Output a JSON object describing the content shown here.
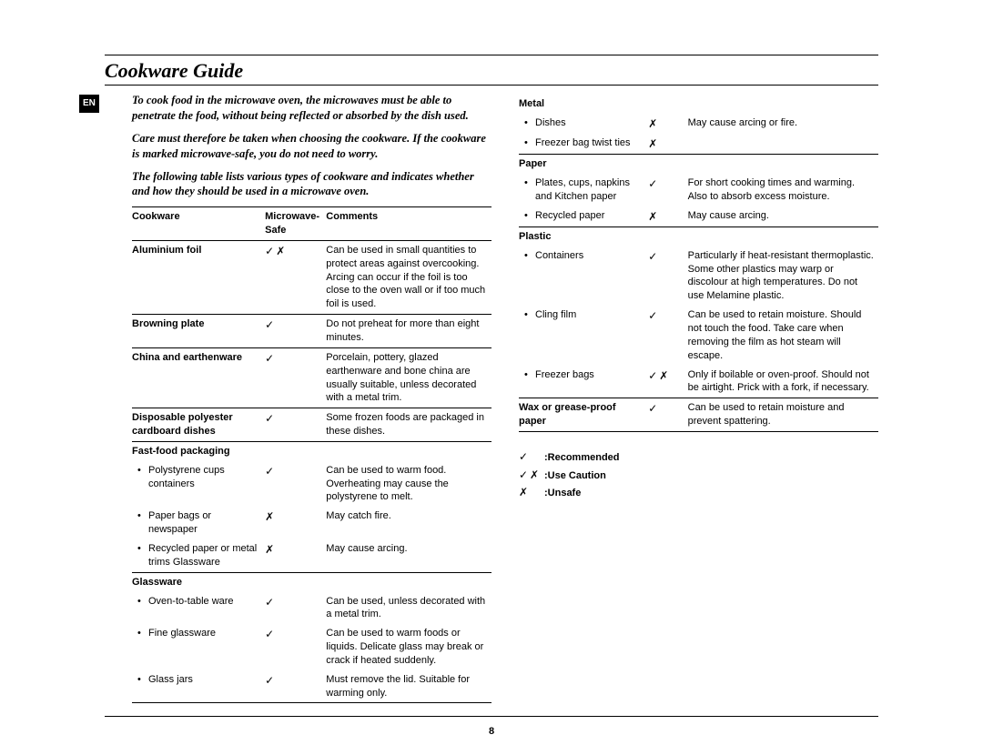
{
  "lang_badge": "EN",
  "title": "Cookware Guide",
  "page_number": "8",
  "intro": [
    "To cook food in the microwave oven, the microwaves must be able to penetrate the food, without being reflected or absorbed by the dish used.",
    "Care must therefore be taken when choosing the cookware.  If the cookware is marked microwave-safe, you do not need to worry.",
    "The following table lists various types of cookware and indicates whether and how they should be used in a microwave oven."
  ],
  "headers": {
    "cookware": "Cookware",
    "safe": "Microwave-Safe",
    "comments": "Comments"
  },
  "symbols": {
    "check": "✓",
    "cross": "✗",
    "caution": "✓✗"
  },
  "legend": {
    "recommended": ":Recommended",
    "caution": ":Use Caution",
    "unsafe": ":Unsafe"
  },
  "left_rows": [
    {
      "name": "Aluminium foil",
      "bold": true,
      "safe": "✓✗",
      "comment": "Can be used in small quantities to protect areas against overcooking. Arcing can occur if the foil is too close to the oven wall or if too much foil is used."
    },
    {
      "name": "Browning plate",
      "bold": true,
      "safe": "✓",
      "comment": "Do not preheat for more than eight minutes."
    },
    {
      "name": "China and earthenware",
      "bold": true,
      "safe": "✓",
      "comment": "Porcelain, pottery, glazed earthenware and bone china are usually suitable, unless decorated with a metal trim."
    },
    {
      "name": "Disposable polyester cardboard dishes",
      "bold": true,
      "safe": "✓",
      "comment": "Some frozen foods are packaged in these dishes."
    },
    {
      "name": "Fast-food packaging",
      "bold": true,
      "header": true
    },
    {
      "name": "Polystyrene cups containers",
      "sub": true,
      "safe": "✓",
      "comment": "Can be used to warm food. Overheating may cause the polystyrene to melt."
    },
    {
      "name": "Paper bags or newspaper",
      "sub": true,
      "safe": "✗",
      "comment": "May catch fire."
    },
    {
      "name": "Recycled paper or metal trims Glassware",
      "sub": true,
      "safe": "✗",
      "comment": "May cause arcing."
    },
    {
      "name": "Glassware",
      "bold": true,
      "header": true
    },
    {
      "name": "Oven-to-table ware",
      "sub": true,
      "safe": "✓",
      "comment": "Can be used, unless decorated with a metal trim."
    },
    {
      "name": "Fine glassware",
      "sub": true,
      "safe": "✓",
      "comment": "Can be used to warm foods or liquids. Delicate glass may break or crack if heated suddenly."
    },
    {
      "name": "Glass jars",
      "sub": true,
      "safe": "✓",
      "comment": "Must remove the lid. Suitable for warming only."
    }
  ],
  "right_rows": [
    {
      "name": "Metal",
      "bold": true,
      "header": true
    },
    {
      "name": "Dishes",
      "sub": true,
      "safe": "✗",
      "comment": "May cause arcing or fire."
    },
    {
      "name": "Freezer bag twist ties",
      "sub": true,
      "safe": "✗",
      "comment": ""
    },
    {
      "name": "Paper",
      "bold": true,
      "header": true
    },
    {
      "name": "Plates, cups, napkins and Kitchen paper",
      "sub": true,
      "safe": "✓",
      "comment": "For short cooking times and warming. Also to absorb excess moisture."
    },
    {
      "name": "Recycled paper",
      "sub": true,
      "safe": "✗",
      "comment": "May cause arcing."
    },
    {
      "name": "Plastic",
      "bold": true,
      "header": true
    },
    {
      "name": "Containers",
      "sub": true,
      "safe": "✓",
      "comment": "Particularly if heat-resistant thermoplastic. Some other plastics may warp or discolour at high temperatures. Do not use Melamine plastic."
    },
    {
      "name": "Cling film",
      "sub": true,
      "safe": "✓",
      "comment": "Can be used to retain moisture. Should not touch the food. Take care when removing the film as hot steam will escape."
    },
    {
      "name": "Freezer bags",
      "sub": true,
      "safe": "✓✗",
      "comment": "Only if boilable or oven-proof.  Should not be airtight. Prick with a fork, if necessary."
    },
    {
      "name": "Wax or grease-proof paper",
      "bold": true,
      "safe": "✓",
      "comment": "Can be used to retain moisture and prevent spattering.",
      "last": true
    }
  ]
}
